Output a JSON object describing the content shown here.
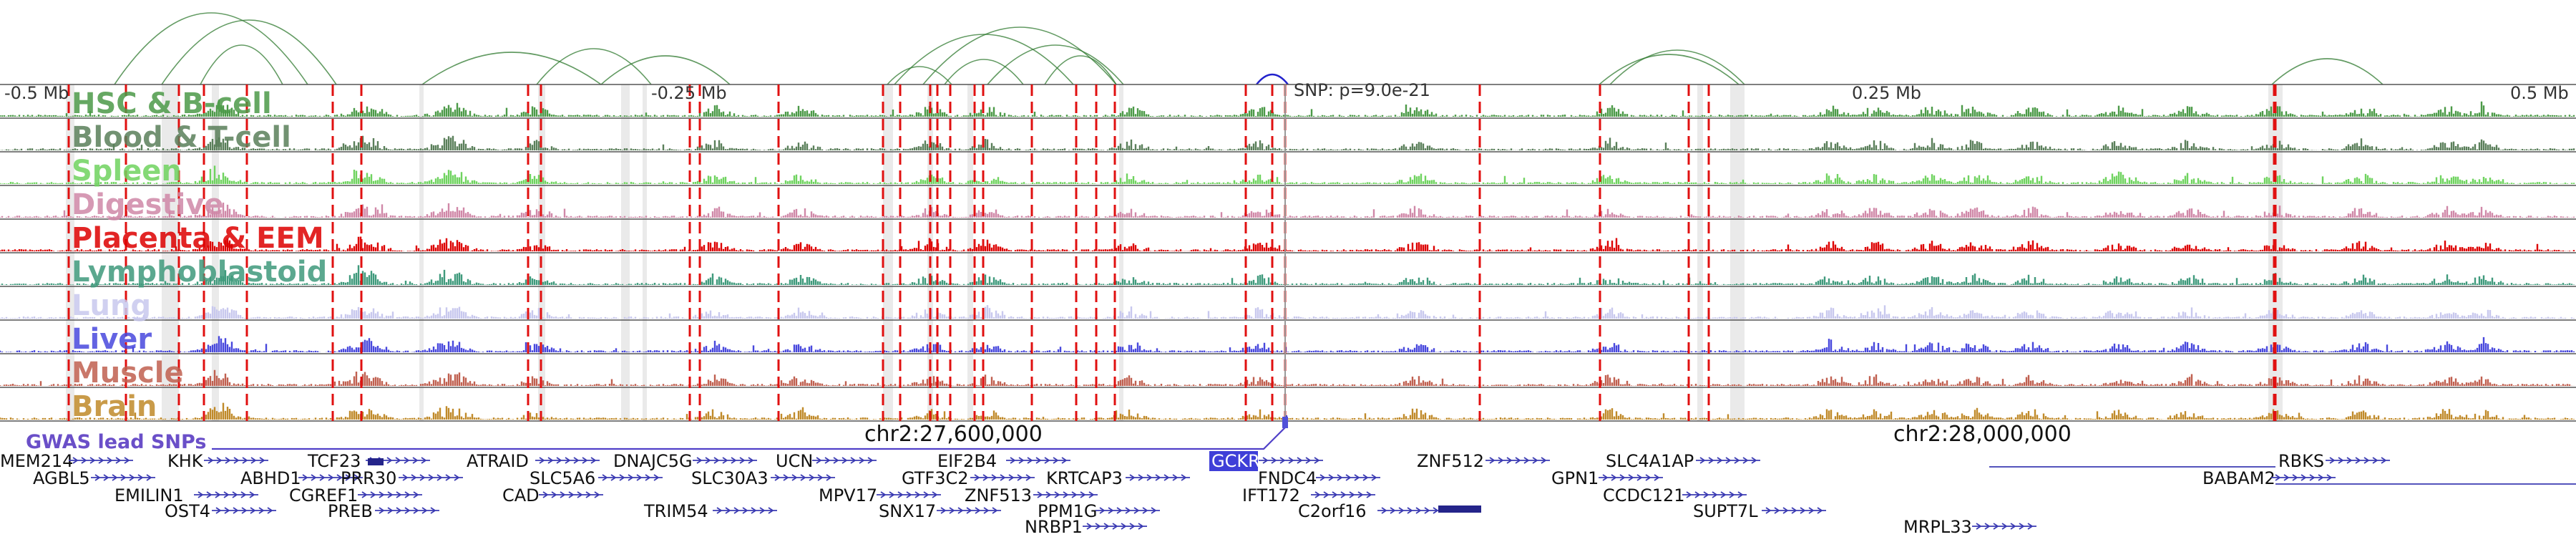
{
  "axis": {
    "left_label": "-0.5 Mb",
    "mid_left_label": "-0.25 Mb",
    "snp_label": "SNP: p=9.0e-21",
    "mid_right_label": "0.25 Mb",
    "right_label": "0.5 Mb"
  },
  "tracks": [
    {
      "name": "HSC & B-cell",
      "color": "#4c9a48"
    },
    {
      "name": "Blood & T-cell",
      "color": "#5a7f5a"
    },
    {
      "name": "Spleen",
      "color": "#6fd35f"
    },
    {
      "name": "Digestive",
      "color": "#d088a8"
    },
    {
      "name": "Placenta & EEM",
      "color": "#dd0000"
    },
    {
      "name": "Lymphoblastoid",
      "color": "#3f9a7c"
    },
    {
      "name": "Lung",
      "color": "#c8c8ee"
    },
    {
      "name": "Liver",
      "color": "#4848dd"
    },
    {
      "name": "Muscle",
      "color": "#c06050"
    },
    {
      "name": "Brain",
      "color": "#c08a2a"
    }
  ],
  "gwas_label": "GWAS lead SNPs",
  "coords": {
    "left": "chr2:27,600,000",
    "right": "chr2:28,000,000"
  },
  "genes": [
    {
      "name": "MEM214",
      "row": 0
    },
    {
      "name": "KHK",
      "row": 0
    },
    {
      "name": "TCF23",
      "row": 0
    },
    {
      "name": "ATRAID",
      "row": 0
    },
    {
      "name": "DNAJC5G",
      "row": 0
    },
    {
      "name": "UCN",
      "row": 0
    },
    {
      "name": "EIF2B4",
      "row": 0
    },
    {
      "name": "GCKR",
      "row": 0,
      "highlight": true
    },
    {
      "name": "ZNF512",
      "row": 0
    },
    {
      "name": "SLC4A1AP",
      "row": 0
    },
    {
      "name": "RBKS",
      "row": 0
    },
    {
      "name": "AGBL5",
      "row": 1
    },
    {
      "name": "ABHD1",
      "row": 1
    },
    {
      "name": "PRR30",
      "row": 1
    },
    {
      "name": "SLC5A6",
      "row": 1
    },
    {
      "name": "SLC30A3",
      "row": 1
    },
    {
      "name": "GTF3C2",
      "row": 1
    },
    {
      "name": "KRTCAP3",
      "row": 1
    },
    {
      "name": "FNDC4",
      "row": 1
    },
    {
      "name": "GPN1",
      "row": 1
    },
    {
      "name": "BABAM2",
      "row": 1
    },
    {
      "name": "EMILIN1",
      "row": 2
    },
    {
      "name": "CGREF1",
      "row": 2
    },
    {
      "name": "CAD",
      "row": 2
    },
    {
      "name": "MPV17",
      "row": 2
    },
    {
      "name": "ZNF513",
      "row": 2
    },
    {
      "name": "IFT172",
      "row": 2
    },
    {
      "name": "CCDC121",
      "row": 2
    },
    {
      "name": "OST4",
      "row": 3
    },
    {
      "name": "PREB",
      "row": 3
    },
    {
      "name": "TRIM54",
      "row": 3
    },
    {
      "name": "SNX17",
      "row": 3
    },
    {
      "name": "PPM1G",
      "row": 3
    },
    {
      "name": "C2orf16",
      "row": 3
    },
    {
      "name": "SUPT7L",
      "row": 3
    },
    {
      "name": "NRBP1",
      "row": 4
    },
    {
      "name": "MRPL33",
      "row": 4
    }
  ]
}
